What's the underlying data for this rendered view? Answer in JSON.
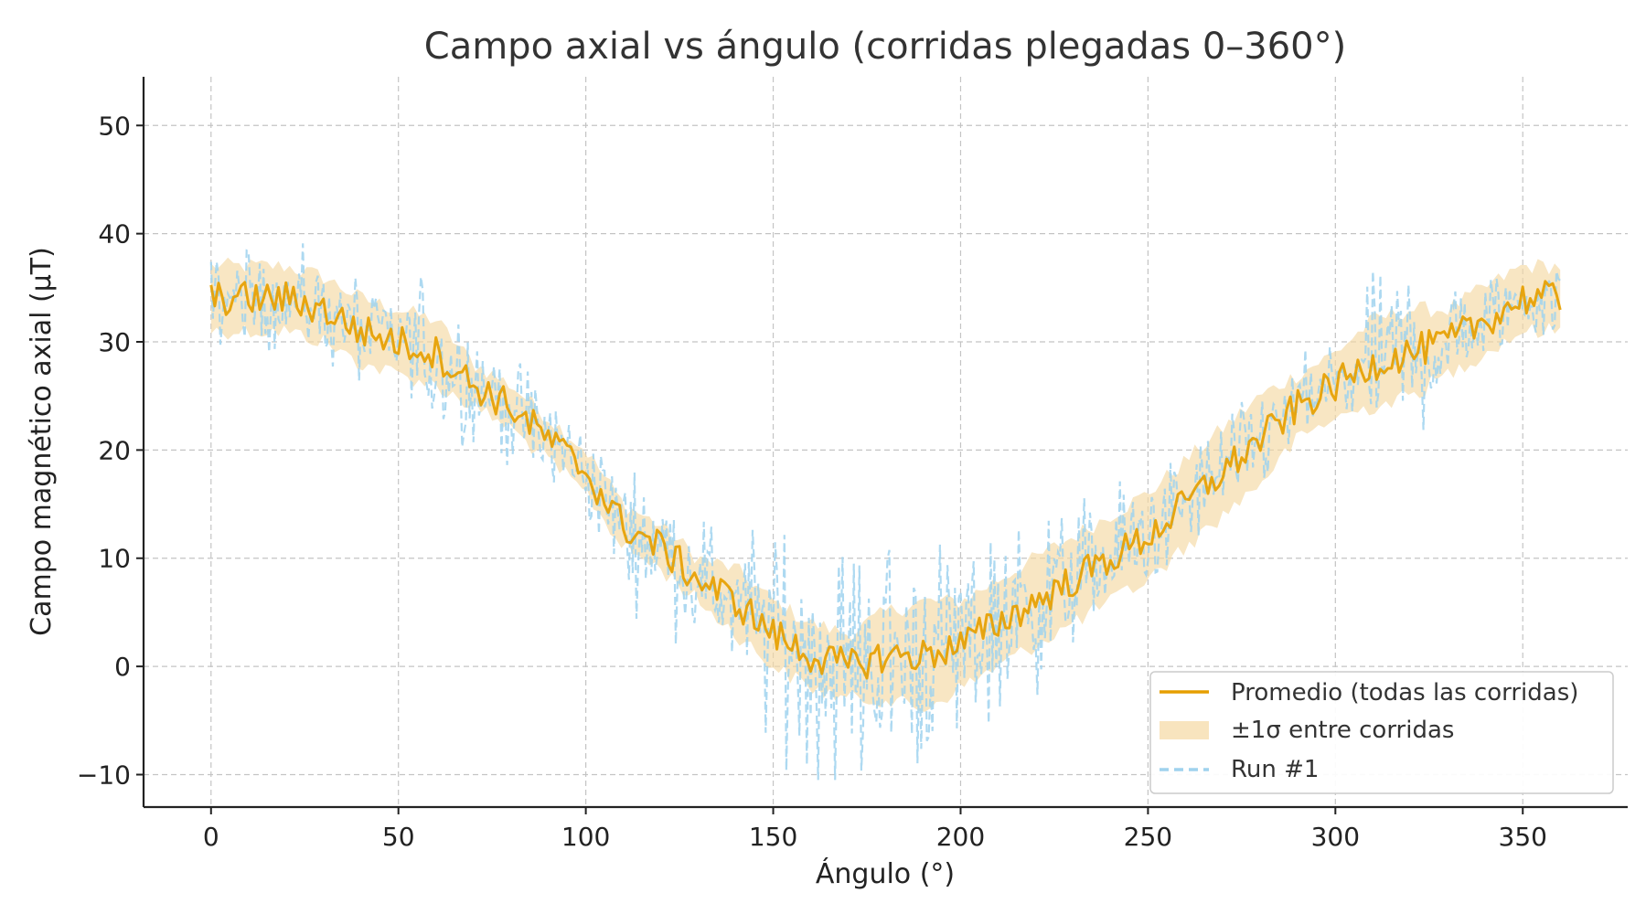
{
  "chart_data": {
    "type": "line",
    "title": "Campo axial vs ángulo (corridas plegadas 0–360°)",
    "xlabel": "Ángulo (°)",
    "ylabel": "Campo magnético axial (µT)",
    "xlim": [
      -18,
      378
    ],
    "ylim": [
      -13,
      54.5
    ],
    "xticks": [
      0,
      50,
      100,
      150,
      200,
      250,
      300,
      350
    ],
    "yticks": [
      -10,
      0,
      10,
      20,
      30,
      40,
      50
    ],
    "ytick_labels": [
      "−10",
      "0",
      "10",
      "20",
      "30",
      "40",
      "50"
    ],
    "grid": true,
    "legend_position": "lower-right",
    "colors": {
      "mean": "#E69F00",
      "band": "#F5D9A3",
      "run": "#9FD2EE"
    },
    "series": [
      {
        "name": "Promedio (todas las corridas)",
        "style": "solid",
        "x": [
          0,
          10,
          20,
          30,
          40,
          50,
          60,
          70,
          80,
          90,
          100,
          110,
          120,
          130,
          140,
          150,
          160,
          170,
          180,
          190,
          200,
          210,
          220,
          230,
          240,
          250,
          260,
          270,
          280,
          290,
          300,
          310,
          320,
          330,
          340,
          350,
          360
        ],
        "values": [
          34,
          34,
          34,
          33,
          31,
          30,
          29,
          26,
          24,
          21,
          18,
          13,
          11,
          8,
          6,
          3,
          1,
          0,
          1,
          1,
          2,
          4,
          6,
          8,
          10,
          12,
          15,
          18,
          21,
          24,
          26,
          28,
          29,
          30,
          32,
          34,
          34
        ]
      },
      {
        "name": "±1σ entre corridas",
        "style": "band",
        "x": [
          0,
          10,
          20,
          30,
          40,
          50,
          60,
          70,
          80,
          90,
          100,
          110,
          120,
          130,
          140,
          150,
          160,
          170,
          180,
          190,
          200,
          210,
          220,
          230,
          240,
          250,
          260,
          270,
          280,
          290,
          300,
          310,
          320,
          330,
          340,
          350,
          360
        ],
        "lower": [
          31,
          31,
          31,
          30,
          28,
          27,
          26,
          24,
          22,
          19,
          16,
          11,
          9,
          6,
          3,
          0,
          -2,
          -3,
          -3,
          -4,
          -2,
          0,
          2,
          4,
          6,
          8,
          11,
          14,
          17,
          21,
          23,
          24,
          25,
          27,
          29,
          31,
          31
        ],
        "upper": [
          37,
          37,
          37,
          36,
          34,
          33,
          32,
          28,
          26,
          23,
          20,
          15,
          13,
          10,
          9,
          6,
          4,
          3,
          5,
          6,
          6,
          8,
          10,
          12,
          14,
          16,
          19,
          22,
          25,
          27,
          29,
          32,
          33,
          33,
          35,
          37,
          37
        ]
      },
      {
        "name": "Run #1",
        "style": "dashed",
        "x": [
          0,
          10,
          20,
          30,
          40,
          50,
          60,
          70,
          80,
          90,
          100,
          110,
          120,
          130,
          140,
          150,
          160,
          170,
          180,
          190,
          200,
          210,
          220,
          230,
          240,
          250,
          260,
          270,
          280,
          290,
          300,
          310,
          320,
          330,
          340,
          350,
          360
        ],
        "values": [
          34,
          34,
          34,
          33,
          31,
          30,
          29,
          26,
          24,
          21,
          18,
          13,
          11,
          8,
          6,
          3,
          1,
          0,
          1,
          1,
          2,
          4,
          6,
          8,
          10,
          12,
          15,
          18,
          21,
          24,
          26,
          28,
          29,
          30,
          32,
          34,
          34
        ],
        "spread": [
          5,
          5,
          6,
          6,
          6,
          6,
          12,
          6,
          6,
          6,
          6,
          7,
          7,
          7,
          8,
          12,
          13,
          14,
          14,
          14,
          13,
          11,
          10,
          9,
          8,
          7,
          6,
          6,
          5,
          5,
          5,
          9,
          11,
          8,
          5,
          5,
          5
        ]
      }
    ]
  }
}
